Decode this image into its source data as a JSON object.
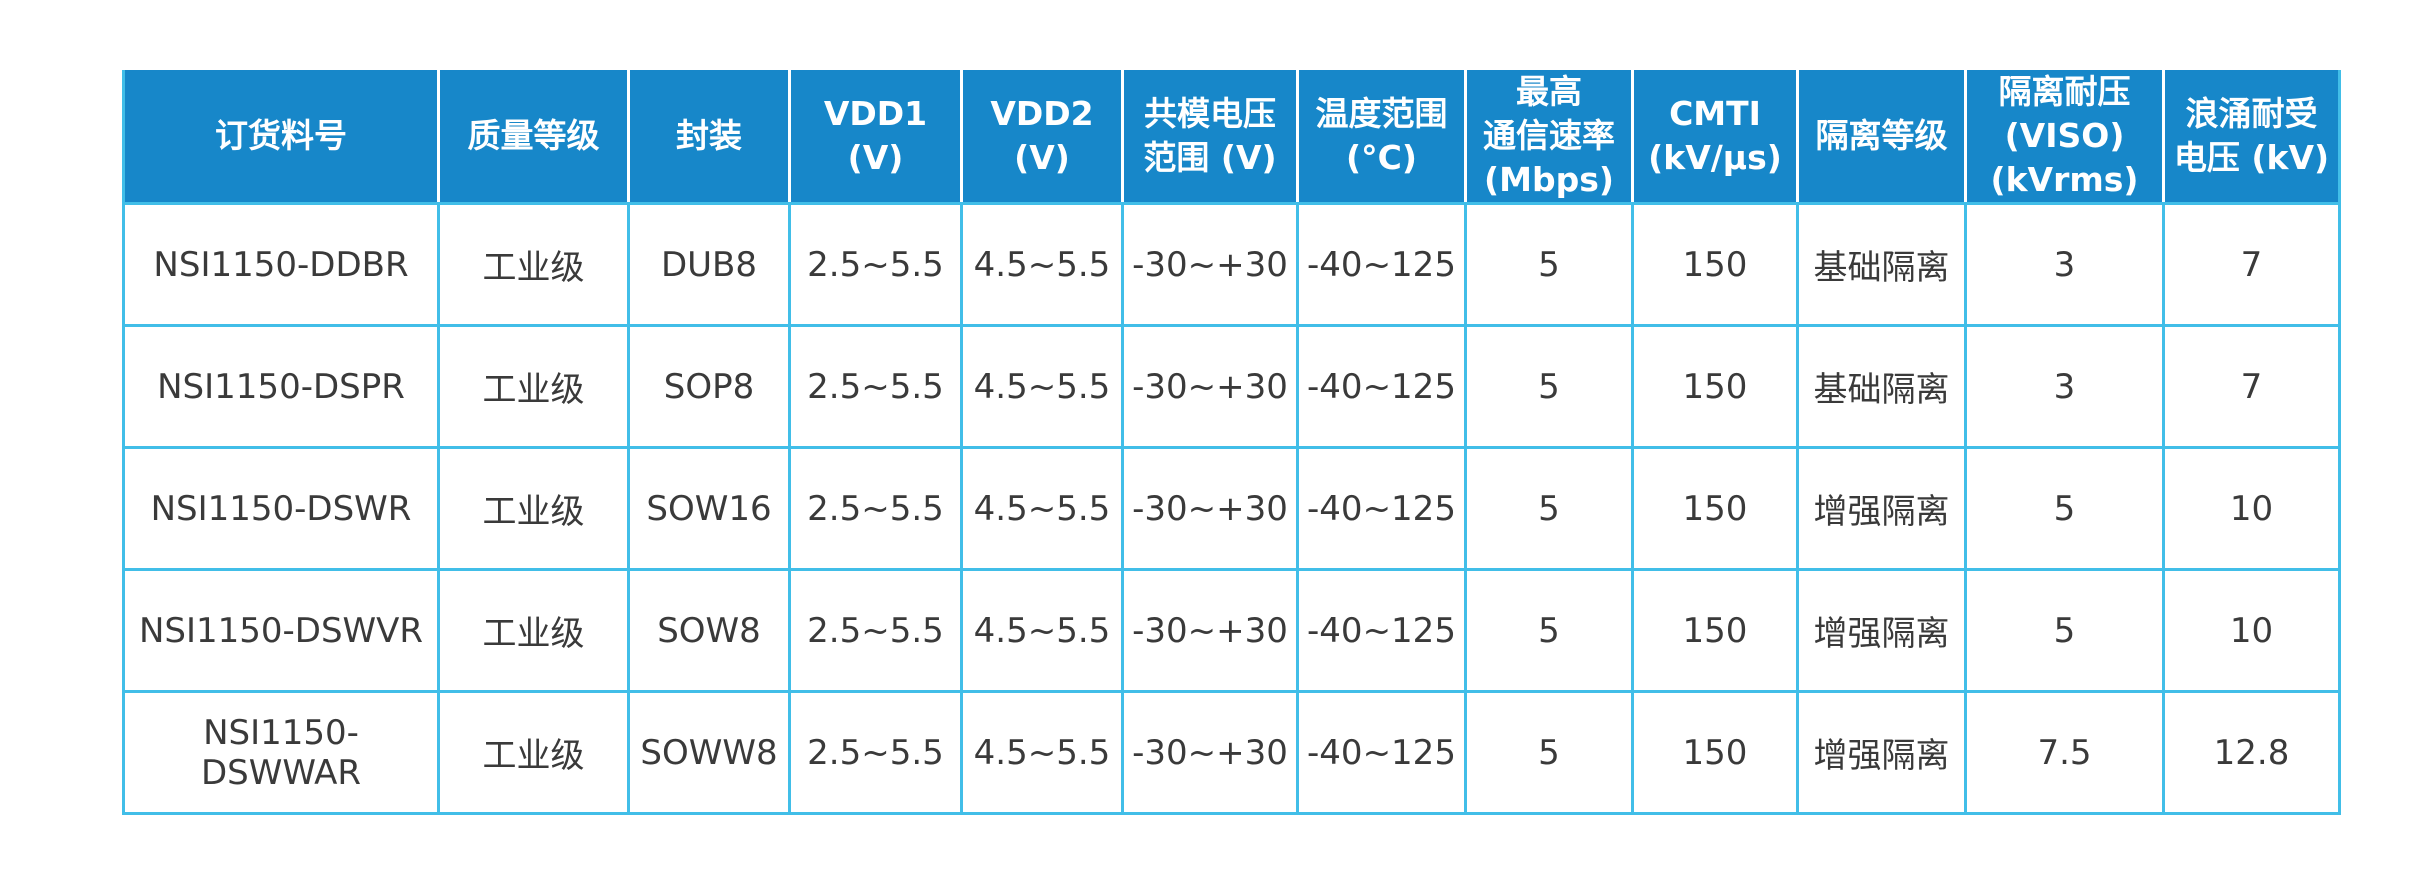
{
  "colors": {
    "header_background": "#1787C9",
    "header_text": "#FFFFFF",
    "grid_line": "#41BEE8",
    "header_separator": "#FFFFFF",
    "cell_text": "#3A3A3A",
    "page_background": "#FFFFFF"
  },
  "table": {
    "columns": [
      {
        "label": "订货料号"
      },
      {
        "label": "质量等级"
      },
      {
        "label": "封装"
      },
      {
        "label": "VDD1\n(V)"
      },
      {
        "label": "VDD2\n(V)"
      },
      {
        "label": "共模电压\n范围 (V)"
      },
      {
        "label": "温度范围\n(°C)"
      },
      {
        "label": "最高\n通信速率\n(Mbps)"
      },
      {
        "label": "CMTI\n(kV/μs)"
      },
      {
        "label": "隔离等级"
      },
      {
        "label": "隔离耐压\n(VISO)\n(kVrms)"
      },
      {
        "label": "浪涌耐受\n电压 (kV)"
      }
    ],
    "rows": [
      {
        "cells": [
          "NSI1150-DDBR",
          "工业级",
          "DUB8",
          "2.5~5.5",
          "4.5~5.5",
          "-30~+30",
          "-40~125",
          "5",
          "150",
          "基础隔离",
          "3",
          "7"
        ]
      },
      {
        "cells": [
          "NSI1150-DSPR",
          "工业级",
          "SOP8",
          "2.5~5.5",
          "4.5~5.5",
          "-30~+30",
          "-40~125",
          "5",
          "150",
          "基础隔离",
          "3",
          "7"
        ]
      },
      {
        "cells": [
          "NSI1150-DSWR",
          "工业级",
          "SOW16",
          "2.5~5.5",
          "4.5~5.5",
          "-30~+30",
          "-40~125",
          "5",
          "150",
          "增强隔离",
          "5",
          "10"
        ]
      },
      {
        "cells": [
          "NSI1150-DSWVR",
          "工业级",
          "SOW8",
          "2.5~5.5",
          "4.5~5.5",
          "-30~+30",
          "-40~125",
          "5",
          "150",
          "增强隔离",
          "5",
          "10"
        ]
      },
      {
        "cells": [
          "NSI1150-DSWWAR",
          "工业级",
          "SOWW8",
          "2.5~5.5",
          "4.5~5.5",
          "-30~+30",
          "-40~125",
          "5",
          "150",
          "增强隔离",
          "7.5",
          "12.8"
        ]
      }
    ]
  }
}
